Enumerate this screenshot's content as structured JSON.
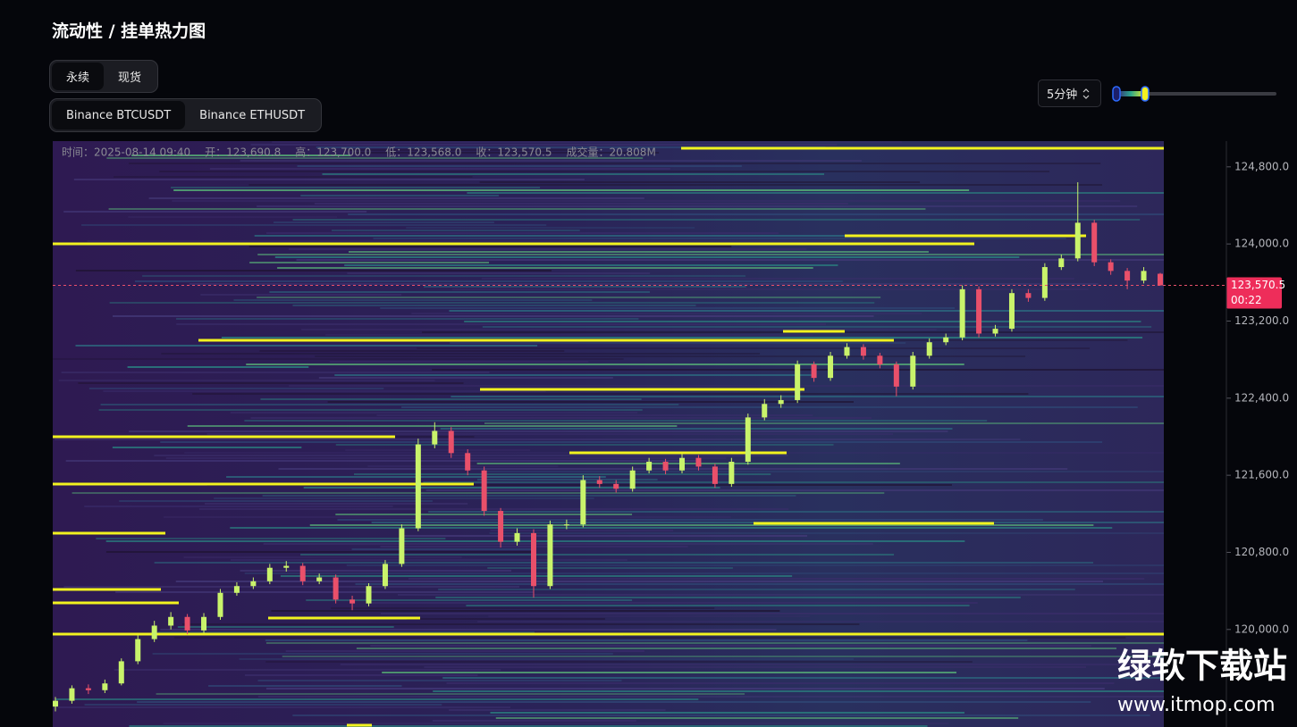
{
  "header": {
    "title": "流动性 / 挂单热力图"
  },
  "market_tabs": [
    "永续",
    "现货"
  ],
  "symbol_tabs": [
    "Binance BTCUSDT",
    "Binance ETHUSDT"
  ],
  "interval": "5分钟",
  "watermark": {
    "name": "绿软下载站",
    "url": "www.itmop.com"
  },
  "chart_data": {
    "type": "candlestick",
    "info": [
      "时间：2025-08-14 09:40",
      "开：123,690.8",
      "高：123,700.0",
      "低：123,568.0",
      "收：123,570.5",
      "成交量：20.808M"
    ],
    "up_color": "#c9f36b",
    "down_color": "#e9506a",
    "ylim": [
      118988,
      125067
    ],
    "yticks": [
      {
        "value": 124800,
        "label": "124,800.0"
      },
      {
        "value": 124000,
        "label": "124,000.0"
      },
      {
        "value": 123200,
        "label": "123,200.0"
      },
      {
        "value": 122400,
        "label": "122,400.0"
      },
      {
        "value": 121600,
        "label": "121,600.0"
      },
      {
        "value": 120800,
        "label": "120,800.0"
      },
      {
        "value": 120000,
        "label": "120,000.0"
      }
    ],
    "current_price": {
      "value": 123570.5,
      "label": "123,570.5",
      "countdown": "00:22"
    },
    "open": [
      119200,
      119260,
      119390,
      119370,
      119440,
      119670,
      119900,
      120040,
      120130,
      119990,
      120130,
      120380,
      120450,
      120500,
      120640,
      120660,
      120500,
      120540,
      120310,
      120270,
      120450,
      120680,
      121050,
      121920,
      122060,
      121830,
      121650,
      121230,
      120910,
      121000,
      120450,
      121090,
      121090,
      121550,
      121510,
      121460,
      121650,
      121740,
      121650,
      121780,
      121690,
      121510,
      121740,
      122200,
      122340,
      122380,
      122750,
      122610,
      122840,
      122930,
      122840,
      122750,
      122520,
      122840,
      122980,
      123030,
      123530,
      123070,
      123120,
      123490,
      123440,
      123760,
      123850,
      124220,
      123810,
      123720,
      123620,
      123690.8
    ],
    "high": [
      119300,
      119420,
      119430,
      119480,
      119700,
      119940,
      120090,
      120180,
      120160,
      120170,
      120420,
      120490,
      120540,
      120680,
      120710,
      120690,
      120580,
      120570,
      120350,
      120480,
      120720,
      121090,
      121980,
      122150,
      122100,
      121870,
      121690,
      121260,
      121050,
      121040,
      121130,
      121140,
      121600,
      121590,
      121550,
      121690,
      121780,
      121770,
      121820,
      121810,
      121720,
      121780,
      122240,
      122390,
      122430,
      122790,
      122780,
      122880,
      122970,
      122960,
      122870,
      122780,
      122880,
      123020,
      123070,
      123570,
      123560,
      123160,
      123530,
      123530,
      123800,
      123890,
      124640,
      124250,
      123840,
      123750,
      123760,
      123700
    ],
    "low": [
      119150,
      119230,
      119330,
      119340,
      119420,
      119640,
      119870,
      120000,
      119950,
      119960,
      120100,
      120350,
      120420,
      120470,
      120600,
      120460,
      120470,
      120270,
      120200,
      120240,
      120420,
      120650,
      121020,
      121880,
      121780,
      121600,
      121180,
      120850,
      120870,
      120330,
      120420,
      121040,
      121060,
      121470,
      121420,
      121430,
      121620,
      121610,
      121620,
      121650,
      121470,
      121480,
      121710,
      122170,
      122300,
      122350,
      122570,
      122580,
      122810,
      122800,
      122710,
      122420,
      122490,
      122810,
      122950,
      123000,
      123030,
      123040,
      123090,
      123400,
      123410,
      123730,
      123820,
      123770,
      123680,
      123530,
      123590,
      123568
    ],
    "close": [
      119260,
      119390,
      119370,
      119440,
      119670,
      119900,
      120040,
      120130,
      119990,
      120130,
      120380,
      120450,
      120500,
      120640,
      120660,
      120500,
      120540,
      120310,
      120270,
      120450,
      120680,
      121050,
      121920,
      122060,
      121830,
      121650,
      121230,
      120910,
      121000,
      120450,
      121090,
      121090,
      121550,
      121510,
      121460,
      121650,
      121740,
      121650,
      121780,
      121690,
      121510,
      121740,
      122200,
      122340,
      122380,
      122750,
      122610,
      122840,
      122930,
      122840,
      122750,
      122520,
      122840,
      122980,
      123030,
      123530,
      123070,
      123120,
      123490,
      123440,
      123760,
      123850,
      124220,
      123810,
      123720,
      123620,
      123720,
      123570.5
    ]
  }
}
